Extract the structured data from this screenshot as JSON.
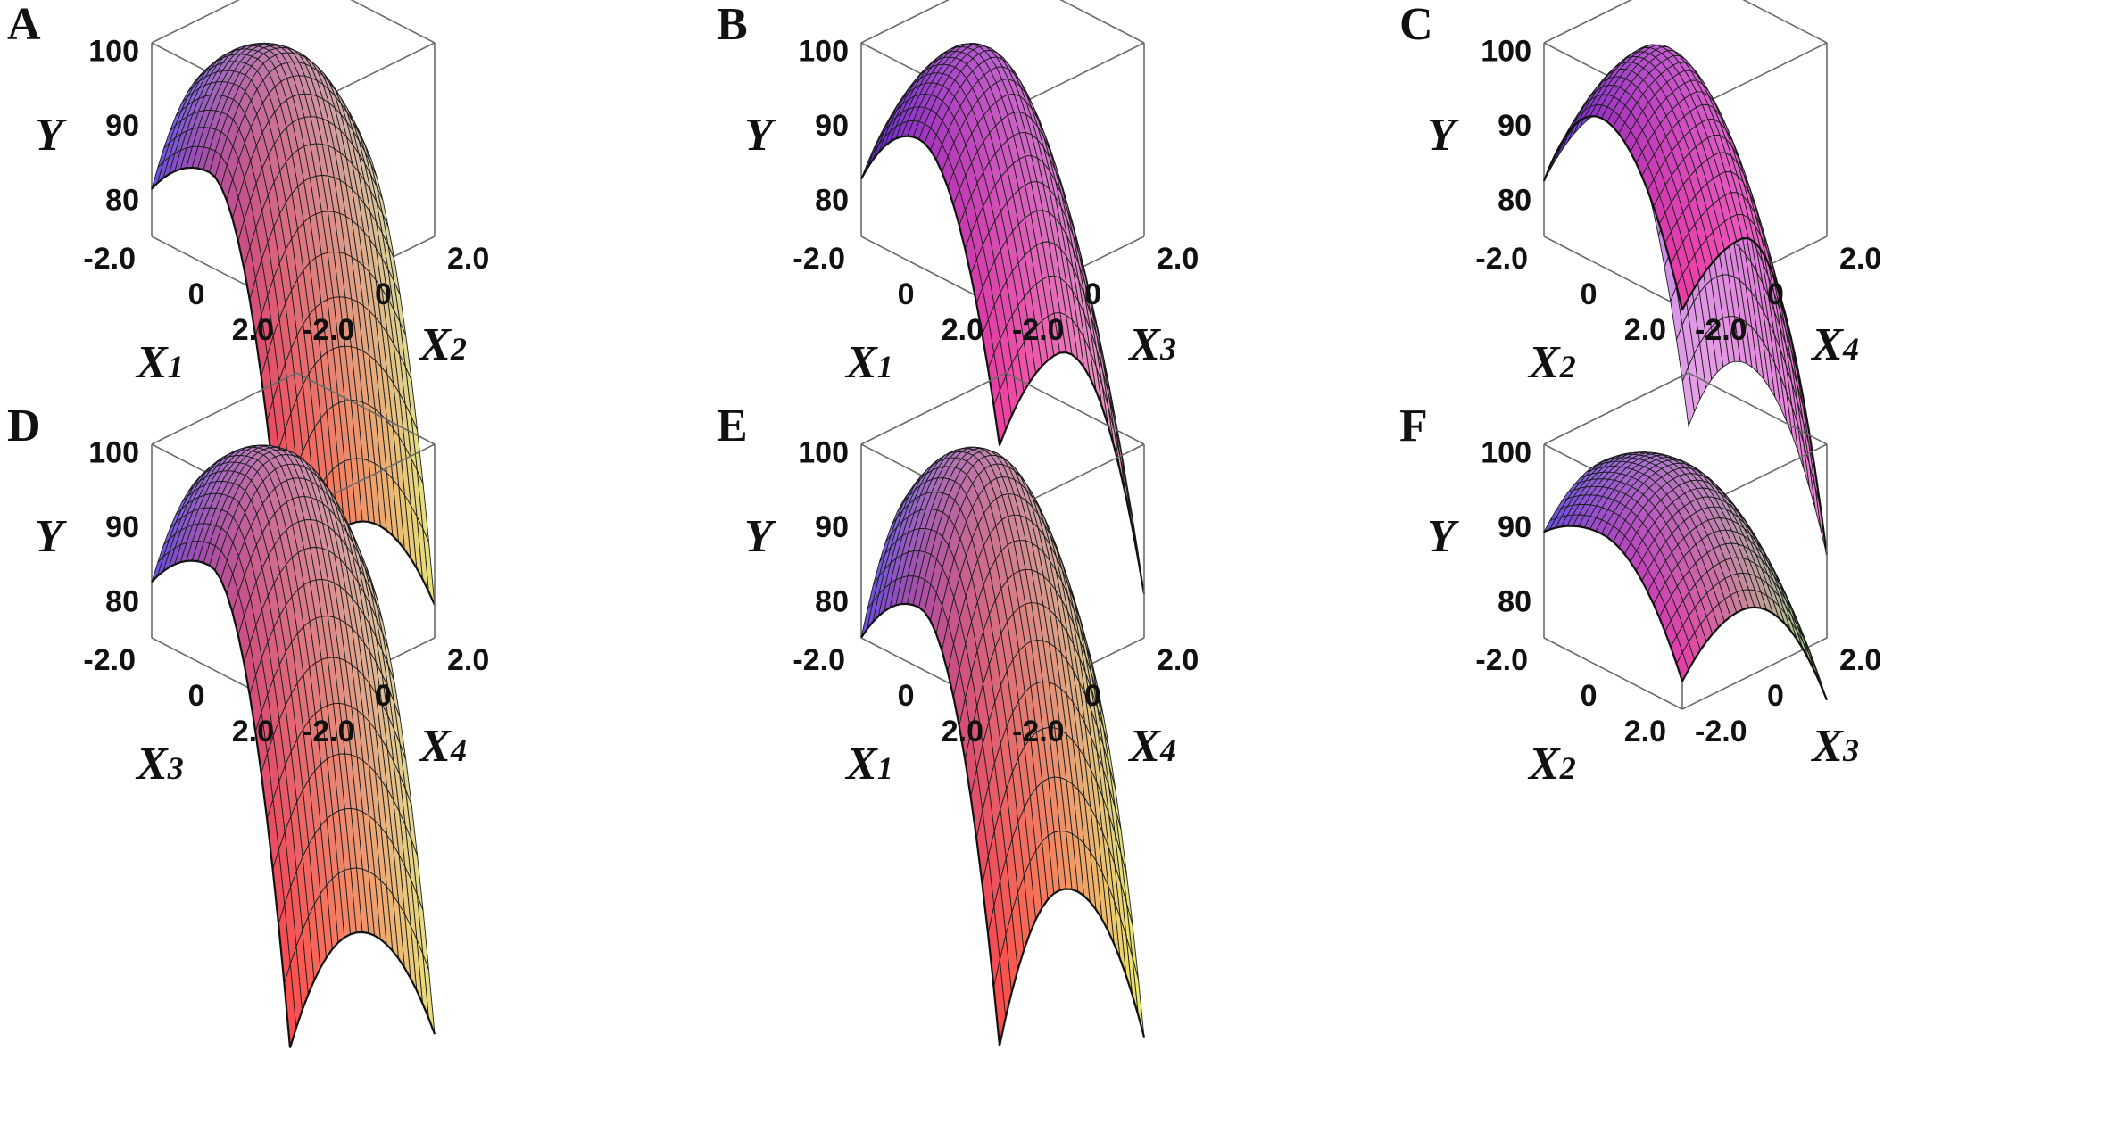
{
  "chart_data": [
    {
      "type": "surface",
      "panel": "A",
      "x_axis": {
        "var": "X",
        "sub": "1",
        "ticks": [
          "-2.0",
          "0",
          "2.0"
        ],
        "range": [
          -2,
          2
        ]
      },
      "y_axis": {
        "var": "X",
        "sub": "2",
        "ticks": [
          "-2.0",
          "0",
          "2.0"
        ],
        "range": [
          -2,
          2
        ]
      },
      "z_axis": {
        "label": "Y",
        "ticks": [
          "100",
          "90",
          "80"
        ],
        "range": [
          75,
          101
        ]
      },
      "surface": {
        "peak": 100.0,
        "a": [
          1.0,
          4.9
        ],
        "b": [
          2.2,
          1.3
        ]
      },
      "colors": {
        "left": "#6b4de0",
        "peak": "#b9c3f3",
        "right": "#e8e477",
        "front": "#ff4a4a",
        "mid": "#d86ab8"
      }
    },
    {
      "type": "surface",
      "panel": "B",
      "x_axis": {
        "var": "X",
        "sub": "1",
        "ticks": [
          "-2.0",
          "0",
          "2.0"
        ],
        "range": [
          -2,
          2
        ]
      },
      "y_axis": {
        "var": "X",
        "sub": "3",
        "ticks": [
          "-2.0",
          "0",
          "2.0"
        ],
        "range": [
          -2,
          2
        ]
      },
      "z_axis": {
        "label": "Y",
        "ticks": [
          "100",
          "90",
          "80"
        ],
        "range": [
          75,
          101
        ]
      },
      "surface": {
        "peak": 100.5,
        "a": [
          1.5,
          3.0
        ],
        "b": [
          1.5,
          3.0
        ]
      },
      "colors": {
        "left": "#5b2bd8",
        "peak": "#c38ee8",
        "right": "#e9b4cb",
        "front": "#f23d9e",
        "mid": "#c24ee6"
      }
    },
    {
      "type": "surface",
      "panel": "C",
      "x_axis": {
        "var": "X",
        "sub": "2",
        "ticks": [
          "-2.0",
          "0",
          "2.0"
        ],
        "range": [
          -2,
          2
        ]
      },
      "y_axis": {
        "var": "X",
        "sub": "4",
        "ticks": [
          "-2.0",
          "0",
          "2.0"
        ],
        "range": [
          -2,
          2
        ]
      },
      "z_axis": {
        "label": "Y",
        "ticks": [
          "100",
          "90",
          "80"
        ],
        "range": [
          75,
          101
        ]
      },
      "surface": {
        "peak": 100.5,
        "a": [
          2.0,
          1.7
        ],
        "b": [
          1.0,
          3.8
        ]
      },
      "colors": {
        "left": "#5b2bd8",
        "peak": "#e6a4e9",
        "right": "#ea80d8",
        "front": "#ef3aa4",
        "mid": "#d058d8"
      }
    },
    {
      "type": "surface",
      "panel": "D",
      "x_axis": {
        "var": "X",
        "sub": "3",
        "ticks": [
          "-2.0",
          "0",
          "2.0"
        ],
        "range": [
          -2,
          2
        ]
      },
      "y_axis": {
        "var": "X",
        "sub": "4",
        "ticks": [
          "-2.0",
          "0",
          "2.0"
        ],
        "range": [
          -2,
          2
        ]
      },
      "z_axis": {
        "label": "Y",
        "ticks": [
          "100",
          "90",
          "80"
        ],
        "range": [
          75,
          101
        ]
      },
      "surface": {
        "peak": 100.0,
        "a": [
          1.0,
          5.0
        ],
        "b": [
          2.0,
          1.5
        ]
      },
      "colors": {
        "left": "#6b4de0",
        "peak": "#c5b4f0",
        "right": "#eae17a",
        "front": "#ff4a4a",
        "mid": "#d86ab8"
      }
    },
    {
      "type": "surface",
      "panel": "E",
      "x_axis": {
        "var": "X",
        "sub": "1",
        "ticks": [
          "-2.0",
          "0",
          "2.0"
        ],
        "range": [
          -2,
          2
        ]
      },
      "y_axis": {
        "var": "X",
        "sub": "4",
        "ticks": [
          "-2.0",
          "0",
          "2.0"
        ],
        "range": [
          -2,
          2
        ]
      },
      "z_axis": {
        "label": "Y",
        "ticks": [
          "100",
          "90",
          "80"
        ],
        "range": [
          75,
          101
        ]
      },
      "surface": {
        "peak": 100.0,
        "a": [
          1.3,
          4.5
        ],
        "b": [
          3.0,
          2.0
        ]
      },
      "colors": {
        "left": "#6b4de0",
        "peak": "#b2c2f2",
        "right": "#ecea6b",
        "front": "#ff4a4a",
        "mid": "#d16ac0"
      }
    },
    {
      "type": "surface",
      "panel": "F",
      "x_axis": {
        "var": "X",
        "sub": "2",
        "ticks": [
          "-2.0",
          "0",
          "2.0"
        ],
        "range": [
          -2,
          2
        ]
      },
      "y_axis": {
        "var": "X",
        "sub": "3",
        "ticks": [
          "-2.0",
          "0",
          "2.0"
        ],
        "range": [
          -2,
          2
        ]
      },
      "z_axis": {
        "label": "Y",
        "ticks": [
          "100",
          "90",
          "80"
        ],
        "range": [
          75,
          101
        ]
      },
      "surface": {
        "peak": 98.6,
        "a": [
          0.6,
          1.2
        ],
        "b": [
          1.0,
          1.4
        ]
      },
      "colors": {
        "left": "#6b4de0",
        "peak": "#c8a8ef",
        "right": "#a2ea84",
        "front": "#e83ba6",
        "mid": "#cf66d6"
      }
    }
  ]
}
